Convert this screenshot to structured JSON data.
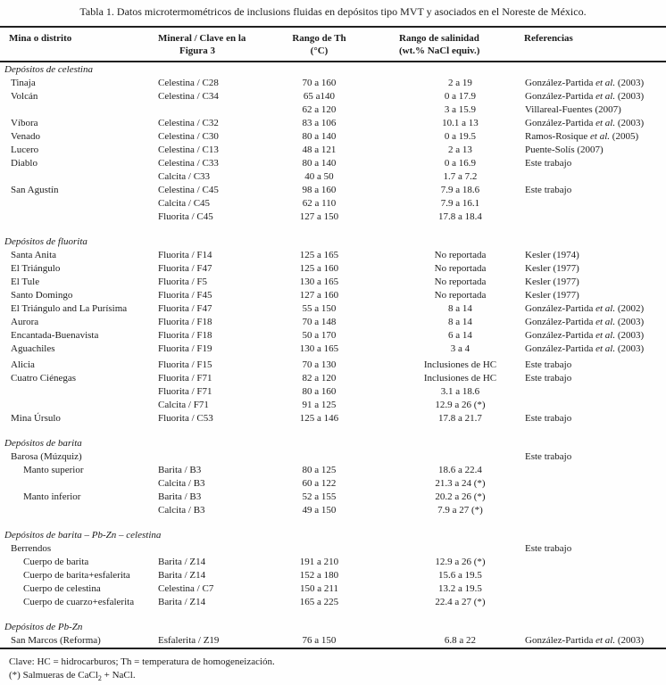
{
  "title": "Tabla 1. Datos microtermométricos de inclusions fluidas en depósitos tipo MVT y asociados en el Noreste de México.",
  "columns": [
    {
      "label": "Mina o distrito",
      "label2": ""
    },
    {
      "label": "Mineral / Clave en la",
      "label2": "Figura 3"
    },
    {
      "label": "Rango de Th",
      "label2": "(°C)"
    },
    {
      "label": "Rango de salinidad",
      "label2": "(wt.% NaCl equiv.)"
    },
    {
      "label": "Referencias",
      "label2": ""
    }
  ],
  "sections": [
    {
      "header": "Depósitos de celestina",
      "rows": [
        {
          "c1": "Tinaja",
          "indent": 1,
          "c2": "Celestina / C28",
          "c3": "70 a 160",
          "c4": "2 a 19",
          "ref": {
            "pre": "González-Partida ",
            "it": "et al.",
            "post": " (2003)"
          }
        },
        {
          "c1": "Volcán",
          "indent": 1,
          "c2": "Celestina / C34",
          "c3": "65 a140",
          "c4": "0 a 17.9",
          "ref": {
            "pre": "González-Partida ",
            "it": "et al.",
            "post": " (2003)"
          }
        },
        {
          "c1": "",
          "indent": 1,
          "c2": "",
          "c3": "62 a 120",
          "c4": "3 a 15.9",
          "ref": {
            "pre": "Villareal-Fuentes (2007)",
            "it": "",
            "post": ""
          }
        },
        {
          "c1": "Víbora",
          "indent": 1,
          "c2": "Celestina / C32",
          "c3": "83 a 106",
          "c4": "10.1 a 13",
          "ref": {
            "pre": "González-Partida ",
            "it": "et al.",
            "post": " (2003)"
          }
        },
        {
          "c1": "Venado",
          "indent": 1,
          "c2": "Celestina / C30",
          "c3": "80 a 140",
          "c4": "0 a 19.5",
          "ref": {
            "pre": "Ramos-Rosique ",
            "it": "et al.",
            "post": " (2005)"
          }
        },
        {
          "c1": "Lucero",
          "indent": 1,
          "c2": "Celestina / C13",
          "c3": "48 a 121",
          "c4": "2 a 13",
          "ref": {
            "pre": "Puente-Solís (2007)",
            "it": "",
            "post": ""
          }
        },
        {
          "c1": "Diablo",
          "indent": 1,
          "c2": "Celestina / C33",
          "c3": "80 a 140",
          "c4": "0 a 16.9",
          "ref": {
            "pre": "Este trabajo",
            "it": "",
            "post": ""
          }
        },
        {
          "c1": "",
          "indent": 1,
          "c2": "Calcita / C33",
          "c3": "40 a 50",
          "c4": "1.7 a 7.2"
        },
        {
          "c1": "San Agustín",
          "indent": 1,
          "c2": "Celestina / C45",
          "c3": "98 a 160",
          "c4": "7.9 a 18.6",
          "ref": {
            "pre": "Este trabajo",
            "it": "",
            "post": ""
          }
        },
        {
          "c1": "",
          "indent": 1,
          "c2": "Calcita / C45",
          "c3": "62 a 110",
          "c4": "7.9 a 16.1"
        },
        {
          "c1": "",
          "indent": 1,
          "c2": "Fluorita / C45",
          "c3": "127 a 150",
          "c4": "17.8 a 18.4"
        }
      ]
    },
    {
      "header": "Depósitos de fluorita",
      "rows": [
        {
          "c1": "Santa Anita",
          "indent": 1,
          "c2": "Fluorita / F14",
          "c3": "125 a 165",
          "c4": "No reportada",
          "ref": {
            "pre": "Kesler (1974)",
            "it": "",
            "post": ""
          }
        },
        {
          "c1": "El Triángulo",
          "indent": 1,
          "c2": "Fluorita / F47",
          "c3": "125 a 160",
          "c4": "No reportada",
          "ref": {
            "pre": "Kesler (1977)",
            "it": "",
            "post": ""
          }
        },
        {
          "c1": "El Tule",
          "indent": 1,
          "c2": "Fluorita / F5",
          "c3": "130 a 165",
          "c4": "No reportada",
          "ref": {
            "pre": "Kesler (1977)",
            "it": "",
            "post": ""
          }
        },
        {
          "c1": "Santo Domingo",
          "indent": 1,
          "c2": "Fluorita / F45",
          "c3": "127 a 160",
          "c4": "No reportada",
          "ref": {
            "pre": "Kesler (1977)",
            "it": "",
            "post": ""
          }
        },
        {
          "c1": "El Triángulo and La Purísima",
          "indent": 1,
          "c2": "Fluorita / F47",
          "c3": "55 a 150",
          "c4": "8 a 14",
          "ref": {
            "pre": "González-Partida ",
            "it": "et al.",
            "post": " (2002)"
          }
        },
        {
          "c1": "Aurora",
          "indent": 1,
          "c2": "Fluorita / F18",
          "c3": "70 a 148",
          "c4": "8 a 14",
          "ref": {
            "pre": "González-Partida ",
            "it": "et al.",
            "post": " (2003)"
          }
        },
        {
          "c1": "Encantada-Buenavista",
          "indent": 1,
          "c2": "Fluorita / F18",
          "c3": "50 a 170",
          "c4": "6 a 14",
          "ref": {
            "pre": "González-Partida ",
            "it": "et al.",
            "post": " (2003)"
          }
        },
        {
          "c1": "Aguachiles",
          "indent": 1,
          "c2": "Fluorita / F19",
          "c3": "130 a 165",
          "c4": "3 a 4",
          "ref": {
            "pre": "González-Partida ",
            "it": "et al.",
            "post": " (2003)"
          }
        },
        {
          "c1": "Alicia",
          "indent": 1,
          "gap": true,
          "c2": "Fluorita / F15",
          "c3": "70 a 130",
          "c4": "Inclusiones de HC",
          "ref": {
            "pre": "Este trabajo",
            "it": "",
            "post": ""
          }
        },
        {
          "c1": "Cuatro Ciénegas",
          "indent": 1,
          "c2": "Fluorita / F71",
          "c3": "82 a 120",
          "c4": "Inclusiones de HC",
          "ref": {
            "pre": "Este trabajo",
            "it": "",
            "post": ""
          }
        },
        {
          "c1": "",
          "indent": 1,
          "c2": "Fluorita / F71",
          "c3": "80 a 160",
          "c4": "3.1 a 18.6"
        },
        {
          "c1": "",
          "indent": 1,
          "c2": "Calcita / F71",
          "c3": "91 a 125",
          "c4": "12.9 a 26 (*)"
        },
        {
          "c1": "Mina Úrsulo",
          "indent": 1,
          "c2": "Fluorita / C53",
          "c3": "125 a 146",
          "c4": "17.8 a 21.7",
          "ref": {
            "pre": "Este trabajo",
            "it": "",
            "post": ""
          }
        }
      ]
    },
    {
      "header": "Depósitos de barita",
      "rows": [
        {
          "c1": "Barosa (Múzquiz)",
          "indent": 1,
          "c2": "",
          "c3": "",
          "c4": "",
          "ref": {
            "pre": "Este trabajo",
            "it": "",
            "post": ""
          }
        },
        {
          "c1": "Manto superior",
          "indent": 2,
          "c2": "Barita / B3",
          "c3": "80 a 125",
          "c4": "18.6 a 22.4"
        },
        {
          "c1": "",
          "indent": 2,
          "c2": "Calcita / B3",
          "c3": "60 a 122",
          "c4": "21.3 a 24 (*)"
        },
        {
          "c1": "Manto inferior",
          "indent": 2,
          "c2": "Barita / B3",
          "c3": "52 a 155",
          "c4": "20.2 a 26 (*)"
        },
        {
          "c1": "",
          "indent": 2,
          "c2": "Calcita / B3",
          "c3": "49 a 150",
          "c4": "7.9 a 27 (*)"
        }
      ]
    },
    {
      "header": "Depósitos de barita – Pb-Zn – celestina",
      "rows": [
        {
          "c1": "Berrendos",
          "indent": 1,
          "c2": "",
          "c3": "",
          "c4": "",
          "ref": {
            "pre": "Este trabajo",
            "it": "",
            "post": ""
          }
        },
        {
          "c1": "Cuerpo de barita",
          "indent": 2,
          "c2": "Barita / Z14",
          "c3": "191 a 210",
          "c4": "12.9 a 26 (*)"
        },
        {
          "c1": "Cuerpo de barita+esfalerita",
          "indent": 2,
          "c2": "Barita / Z14",
          "c3": "152 a 180",
          "c4": "15.6 a 19.5"
        },
        {
          "c1": "Cuerpo de celestina",
          "indent": 2,
          "c2": "Celestina / C7",
          "c3": "150 a 211",
          "c4": "13.2 a 19.5"
        },
        {
          "c1": "Cuerpo de cuarzo+esfalerita",
          "indent": 2,
          "c2": "Barita / Z14",
          "c3": "165 a 225",
          "c4": "22.4 a 27 (*)"
        }
      ]
    },
    {
      "header": "Depósitos de Pb-Zn",
      "rows": [
        {
          "c1": "San Marcos (Reforma)",
          "indent": 1,
          "c2": "Esfalerita / Z19",
          "c3": "76 a 150",
          "c4": "6.8 a 22",
          "ref": {
            "pre": "González-Partida ",
            "it": "et al.",
            "post": " (2003)"
          }
        }
      ]
    }
  ],
  "footnotes": [
    "Clave: HC = hidrocarburos; Th = temperatura de homogeneización.",
    {
      "pre": "(*) Salmueras de CaCl",
      "sub": "2",
      "post": " + NaCl."
    }
  ]
}
